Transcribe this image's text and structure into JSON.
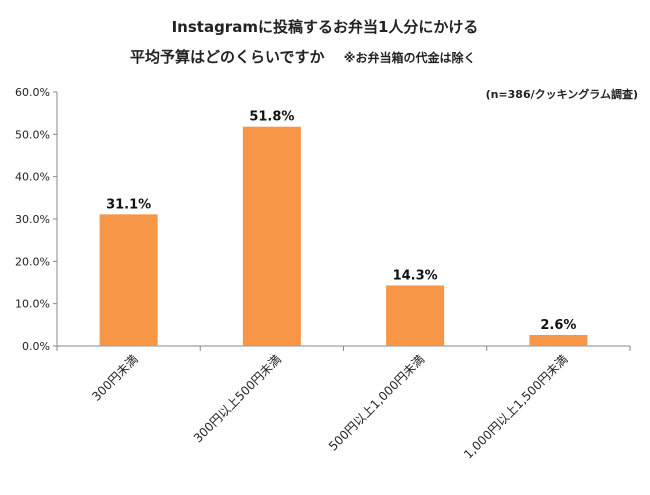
{
  "chart_data": {
    "type": "bar",
    "title_line1": "Instagramに投稿するお弁当1人分にかける",
    "title_line2": "平均予算はどのくらいですか",
    "title_note": "※お弁当箱の代金は除く",
    "source": "(n=386/クッキングラム調査)",
    "categories": [
      "300円未満",
      "300円以上500円未満",
      "500円以上1,000円未満",
      "1,000円以上1,500円未満"
    ],
    "values": [
      31.1,
      51.8,
      14.3,
      2.6
    ],
    "value_labels": [
      "31.1%",
      "51.8%",
      "14.3%",
      "2.6%"
    ],
    "y_ticks": [
      "0.0%",
      "10.0%",
      "20.0%",
      "30.0%",
      "40.0%",
      "50.0%",
      "60.0%"
    ],
    "ylim": [
      0,
      60
    ],
    "bar_color": "#F79646",
    "grid": false,
    "xlabel": "",
    "ylabel": ""
  }
}
